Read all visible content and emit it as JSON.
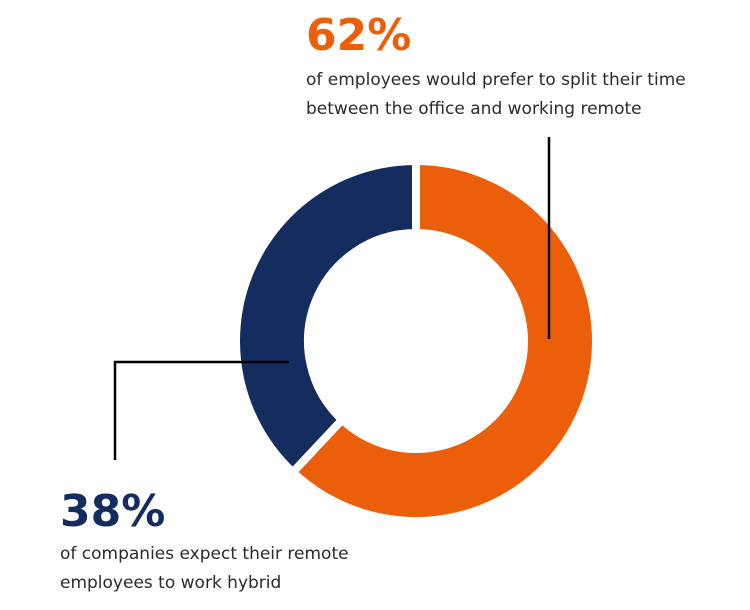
{
  "colors": {
    "accent_orange": "#EC5F0A",
    "navy": "#152D5E",
    "leader_line": "#000000",
    "gap": "#ffffff"
  },
  "chart_data": {
    "type": "pie",
    "variant": "donut",
    "title": "",
    "slices": [
      {
        "label": "62%",
        "value": 62,
        "color": "#EC5F0A"
      },
      {
        "label": "38%",
        "value": 38,
        "color": "#152D5E"
      }
    ],
    "legend": "none",
    "annotations": [
      {
        "id": "a",
        "value_text": "62%",
        "text_lines": [
          "of employees would prefer to split their time",
          "between the office and working remote"
        ]
      },
      {
        "id": "b",
        "value_text": "38%",
        "text_lines": [
          "of companies expect their remote",
          "employees to work hybrid"
        ]
      }
    ]
  }
}
